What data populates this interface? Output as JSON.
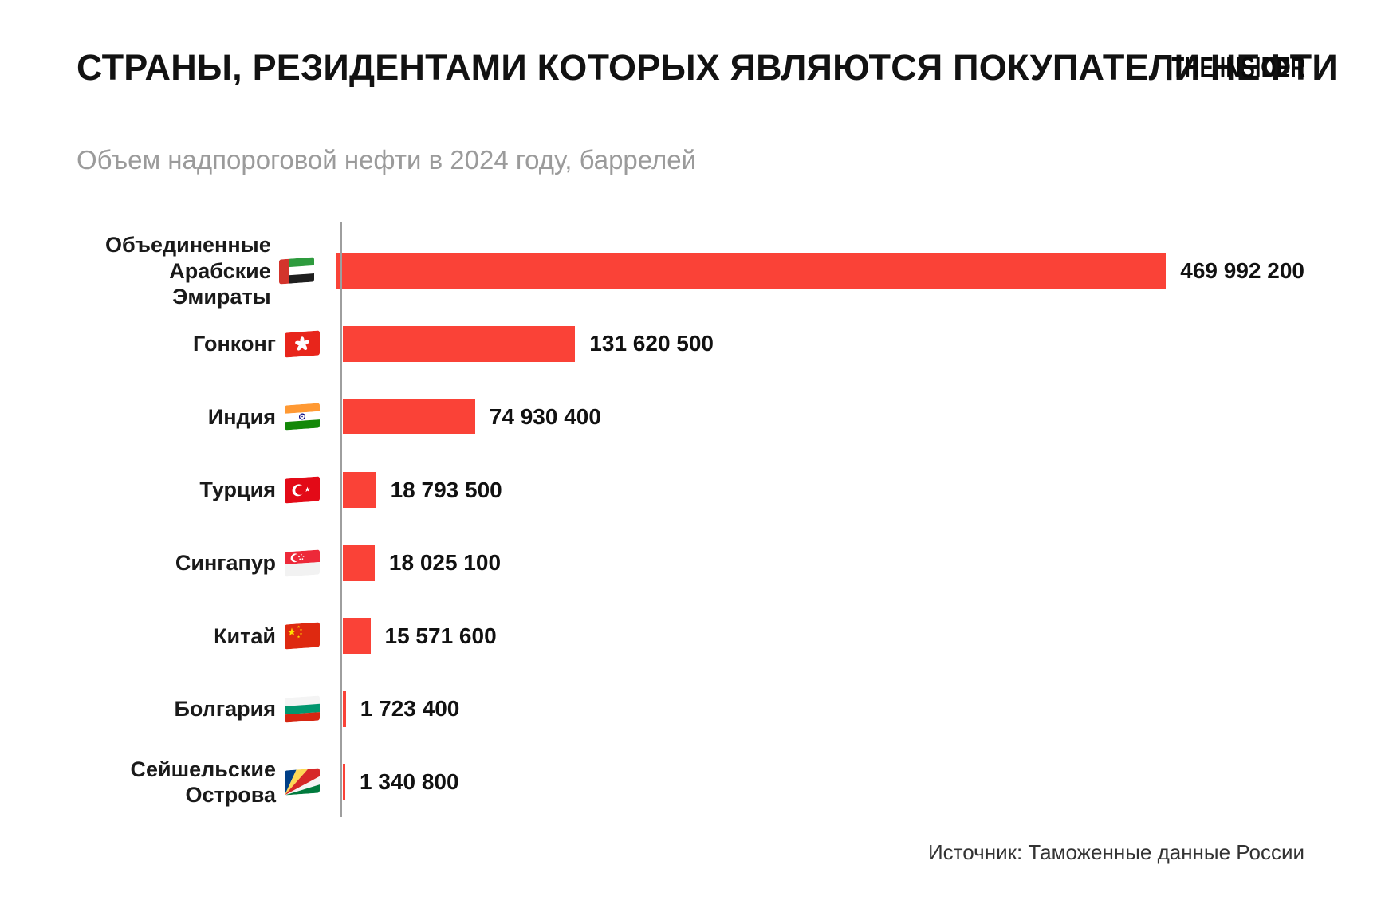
{
  "header": {
    "title_line1": "СТРАНЫ, РЕЗИДЕНТАМИ КОТОРЫХ",
    "title_line2": "ЯВЛЯЮТСЯ ПОКУПАТЕЛИ НЕФТИ",
    "subtitle": "Объем надпороговой нефти в 2024 году, баррелей",
    "logo": "THE INSIDER"
  },
  "footer": {
    "source": "Источник: Таможенные данные России"
  },
  "chart_data": {
    "type": "bar",
    "orientation": "horizontal",
    "title": "СТРАНЫ, РЕЗИДЕНТАМИ КОТОРЫХ ЯВЛЯЮТСЯ ПОКУПАТЕЛИ НЕФТИ",
    "subtitle": "Объем надпороговой нефти в 2024 году, баррелей",
    "source": "Источник: Таможенные данные России",
    "xlim": [
      0,
      469992200
    ],
    "grid": false,
    "legend": false,
    "bar_color": "#FA4237",
    "axis_color": "#9E9E9E",
    "categories": [
      {
        "label_lines": [
          "Объединенные",
          "Арабские Эмираты"
        ],
        "flag": "ae",
        "flag_icon": "flag-uae-icon"
      },
      {
        "label_lines": [
          "Гонконг"
        ],
        "flag": "hk",
        "flag_icon": "flag-hong-kong-icon"
      },
      {
        "label_lines": [
          "Индия"
        ],
        "flag": "in",
        "flag_icon": "flag-india-icon"
      },
      {
        "label_lines": [
          "Турция"
        ],
        "flag": "tr",
        "flag_icon": "flag-turkey-icon"
      },
      {
        "label_lines": [
          "Сингапур"
        ],
        "flag": "sg",
        "flag_icon": "flag-singapore-icon"
      },
      {
        "label_lines": [
          "Китай"
        ],
        "flag": "cn",
        "flag_icon": "flag-china-icon"
      },
      {
        "label_lines": [
          "Болгария"
        ],
        "flag": "bg",
        "flag_icon": "flag-bulgaria-icon"
      },
      {
        "label_lines": [
          "Сейшельские",
          "Острова"
        ],
        "flag": "sc",
        "flag_icon": "flag-seychelles-icon"
      }
    ],
    "values": [
      469992200,
      131620500,
      74930400,
      18793500,
      18025100,
      15571600,
      1723400,
      1340800
    ],
    "value_labels": [
      "469 992 200",
      "131 620 500",
      "74 930 400",
      "18 793 500",
      "18 025 100",
      "15 571 600",
      "1 723 400",
      "1 340 800"
    ]
  }
}
